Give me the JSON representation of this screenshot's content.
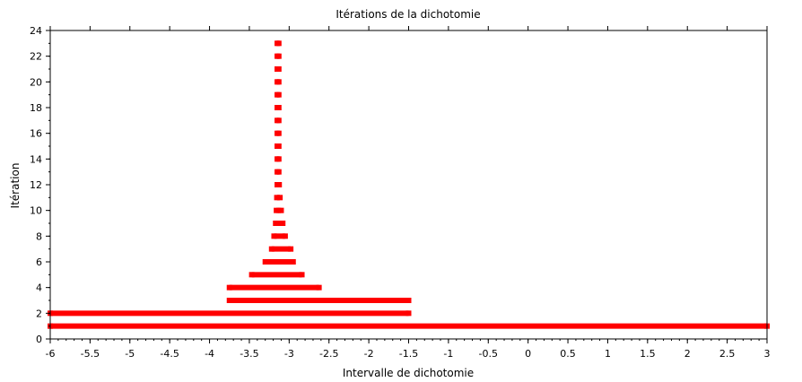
{
  "chart_data": {
    "type": "scatter",
    "title": "Itérations de la dichotomie",
    "xlabel": "Intervalle de dichotomie",
    "ylabel": "Itération",
    "xlim": [
      -6,
      3
    ],
    "ylim": [
      0,
      24
    ],
    "x_ticks": [
      -6,
      -5.5,
      -5,
      -4.5,
      -4,
      -3.5,
      -3,
      -2.5,
      -2,
      -1.5,
      -1,
      -0.5,
      0,
      0.5,
      1,
      1.5,
      2,
      2.5,
      3
    ],
    "x_tick_labels": [
      "-6",
      "-5.5",
      "-5",
      "-4.5",
      "-4",
      "-3.5",
      "-3",
      "-2.5",
      "-2",
      "-1.5",
      "-1",
      "-0.5",
      "0",
      "0.5",
      "1",
      "1.5",
      "2",
      "2.5",
      "3"
    ],
    "y_ticks": [
      0,
      2,
      4,
      6,
      8,
      10,
      12,
      14,
      16,
      18,
      20,
      22,
      24
    ],
    "y_tick_labels": [
      "0",
      "2",
      "4",
      "6",
      "8",
      "10",
      "12",
      "14",
      "16",
      "18",
      "20",
      "22",
      "24"
    ],
    "grid": false,
    "marker_color": "#ff0000",
    "series": [
      {
        "intervals": [
          {
            "iteration": 1,
            "x": [
              -6,
              3
            ]
          },
          {
            "iteration": 2,
            "x": [
              -6,
              -1.5
            ]
          },
          {
            "iteration": 3,
            "x": [
              -3.75,
              -1.5
            ]
          },
          {
            "iteration": 4,
            "x": [
              -3.75,
              -2.625
            ]
          },
          {
            "iteration": 5,
            "x": [
              -3.47,
              -2.84
            ]
          },
          {
            "iteration": 6,
            "x": [
              -3.3,
              -2.95
            ]
          },
          {
            "iteration": 7,
            "x": [
              -3.22,
              -2.98
            ]
          },
          {
            "iteration": 8,
            "x": [
              -3.19,
              -3.05
            ]
          },
          {
            "iteration": 9,
            "x": [
              -3.17,
              -3.08
            ]
          },
          {
            "iteration": 10,
            "x": [
              -3.16,
              -3.1
            ]
          },
          {
            "iteration": 11,
            "x": [
              -3.155,
              -3.115
            ]
          },
          {
            "iteration": 12,
            "x": [
              -3.15,
              -3.125
            ]
          },
          {
            "iteration": 13,
            "x": [
              -3.15,
              -3.13
            ]
          },
          {
            "iteration": 14,
            "x": [
              -3.15,
              -3.13
            ]
          },
          {
            "iteration": 15,
            "x": [
              -3.15,
              -3.13
            ]
          },
          {
            "iteration": 16,
            "x": [
              -3.15,
              -3.13
            ]
          },
          {
            "iteration": 17,
            "x": [
              -3.15,
              -3.13
            ]
          },
          {
            "iteration": 18,
            "x": [
              -3.15,
              -3.13
            ]
          },
          {
            "iteration": 19,
            "x": [
              -3.15,
              -3.13
            ]
          },
          {
            "iteration": 20,
            "x": [
              -3.15,
              -3.13
            ]
          },
          {
            "iteration": 21,
            "x": [
              -3.15,
              -3.13
            ]
          },
          {
            "iteration": 22,
            "x": [
              -3.15,
              -3.13
            ]
          },
          {
            "iteration": 23,
            "x": [
              -3.15,
              -3.13
            ]
          }
        ]
      }
    ]
  }
}
